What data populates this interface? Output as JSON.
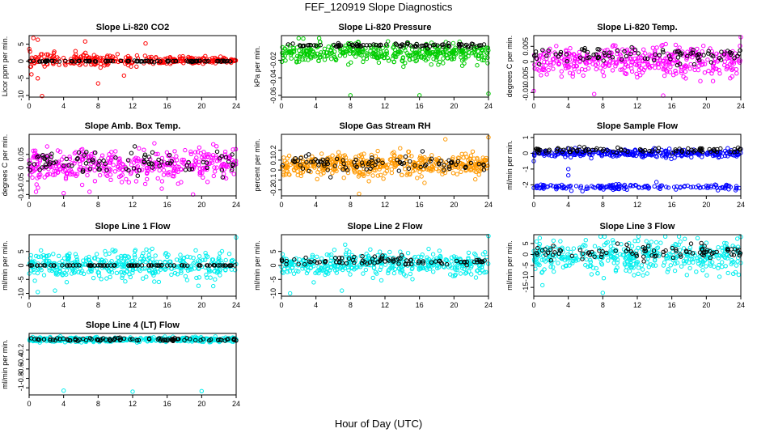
{
  "figure": {
    "title": "FEF_120919  Slope Diagnostics",
    "xlabel": "Hour of Day (UTC)"
  },
  "chart_data": [
    {
      "type": "scatter",
      "title": "Slope Li-820 CO2",
      "ylabel": "Licor ppm per min.",
      "xlim": [
        0,
        24
      ],
      "ylim": [
        -10.5,
        7.5
      ],
      "xticks": [
        0,
        4,
        8,
        12,
        16,
        20,
        24
      ],
      "yticks": [
        -10,
        -5,
        0,
        5
      ],
      "series": [
        {
          "color": "#ff0000",
          "center": 0.3,
          "spread": 2.0,
          "n": 300,
          "taper": true
        },
        {
          "color": "#000000",
          "center": 0.0,
          "spread": 0.15,
          "n": 90
        }
      ],
      "outliers": [
        [
          0.5,
          6.8
        ],
        [
          1.0,
          6.3
        ],
        [
          1.5,
          -10.2
        ],
        [
          6.5,
          5.8
        ],
        [
          8.0,
          -6.5
        ],
        [
          13.5,
          5.2
        ],
        [
          1.0,
          -5.0
        ],
        [
          11.0,
          -4.2
        ]
      ]
    },
    {
      "type": "scatter",
      "title": "Slope Li-820 Pressure",
      "ylabel": "kPa per min.",
      "xlim": [
        0,
        24
      ],
      "ylim": [
        -0.062,
        0.008
      ],
      "xticks": [
        0,
        4,
        8,
        12,
        16,
        20,
        24
      ],
      "yticks": [
        -0.06,
        -0.04,
        -0.02
      ],
      "series": [
        {
          "color": "#00cc00",
          "center": -0.012,
          "spread": 0.009,
          "n": 420
        },
        {
          "color": "#000000",
          "center": -0.003,
          "spread": 0.002,
          "n": 90
        }
      ],
      "outliers": [
        [
          8.0,
          -0.06
        ],
        [
          16.0,
          -0.06
        ],
        [
          24.0,
          -0.058
        ],
        [
          2.0,
          0.005
        ]
      ]
    },
    {
      "type": "scatter",
      "title": "Slope Li-820 Temp.",
      "ylabel": "degrees C per min.",
      "xlim": [
        0,
        24
      ],
      "ylim": [
        -0.0115,
        0.0085
      ],
      "xticks": [
        0,
        4,
        8,
        12,
        16,
        20,
        24
      ],
      "yticks": [
        -0.01,
        -0.005,
        0.0,
        0.005
      ],
      "series": [
        {
          "color": "#ff00ff",
          "center": 0.0,
          "spread": 0.004,
          "n": 400
        },
        {
          "color": "#000000",
          "center": 0.002,
          "spread": 0.002,
          "n": 90
        }
      ],
      "outliers": [
        [
          0.0,
          -0.0095
        ],
        [
          7.0,
          -0.0105
        ],
        [
          24.0,
          0.008
        ],
        [
          15.0,
          -0.011
        ]
      ]
    },
    {
      "type": "scatter",
      "title": "Slope Amb. Box Temp.",
      "ylabel": "degrees C per min.",
      "xlim": [
        0,
        24
      ],
      "ylim": [
        -0.105,
        0.125
      ],
      "xticks": [
        0,
        4,
        8,
        12,
        16,
        20,
        24
      ],
      "yticks": [
        -0.1,
        -0.05,
        0.0,
        0.05
      ],
      "series": [
        {
          "color": "#ff00ff",
          "center": 0.01,
          "spread": 0.05,
          "n": 400
        },
        {
          "color": "#000000",
          "center": 0.02,
          "spread": 0.04,
          "n": 90
        }
      ],
      "outliers": [
        [
          4.0,
          -0.095
        ],
        [
          7.0,
          -0.09
        ],
        [
          19.0,
          -0.1
        ]
      ]
    },
    {
      "type": "scatter",
      "title": "Slope Gas Stream RH",
      "ylabel": "percent per min.",
      "xlim": [
        0,
        24
      ],
      "ylim": [
        -0.26,
        0.36
      ],
      "xticks": [
        0,
        4,
        8,
        12,
        16,
        20,
        24
      ],
      "yticks": [
        -0.2,
        -0.1,
        0.0,
        0.1,
        0.2
      ],
      "series": [
        {
          "color": "#ff9900",
          "center": 0.05,
          "spread": 0.09,
          "n": 480
        },
        {
          "color": "#000000",
          "center": 0.07,
          "spread": 0.07,
          "n": 90
        }
      ],
      "outliers": [
        [
          9.0,
          -0.24
        ],
        [
          24.0,
          0.33
        ],
        [
          19.0,
          0.31
        ]
      ]
    },
    {
      "type": "scatter",
      "title": "Slope Sample Flow",
      "ylabel": "ml/min per min.",
      "xlim": [
        0,
        24
      ],
      "ylim": [
        -2.7,
        1.2
      ],
      "xticks": [
        0,
        4,
        8,
        12,
        16,
        20,
        24
      ],
      "yticks": [
        -2,
        -1,
        0,
        1
      ],
      "series": [
        {
          "color": "#0000ff",
          "center": 0.0,
          "spread": 0.2,
          "n": 300
        },
        {
          "color": "#0000ff",
          "center": -2.15,
          "spread": 0.15,
          "n": 150
        },
        {
          "color": "#000000",
          "center": 0.2,
          "spread": 0.15,
          "n": 90
        }
      ],
      "outliers": [
        [
          4.0,
          -1.4
        ],
        [
          4.0,
          -1.0
        ],
        [
          0.0,
          -0.5
        ]
      ]
    },
    {
      "type": "scatter",
      "title": "Slope Line 1 Flow",
      "ylabel": "ml/min per min.",
      "xlim": [
        0,
        24
      ],
      "ylim": [
        -11,
        11
      ],
      "xticks": [
        0,
        4,
        8,
        12,
        16,
        20,
        24
      ],
      "yticks": [
        -10,
        -5,
        0,
        5
      ],
      "series": [
        {
          "color": "#00eeee",
          "center": 0.0,
          "spread": 4.0,
          "n": 420
        },
        {
          "color": "#000000",
          "center": 0.0,
          "spread": 0.05,
          "n": 90
        }
      ],
      "outliers": [
        [
          24.0,
          10.0
        ],
        [
          1.0,
          -9.5
        ],
        [
          3.0,
          -9.0
        ]
      ]
    },
    {
      "type": "scatter",
      "title": "Slope Line 2 Flow",
      "ylabel": "ml/min per min.",
      "xlim": [
        0,
        24
      ],
      "ylim": [
        -11,
        11
      ],
      "xticks": [
        0,
        4,
        8,
        12,
        16,
        20,
        24
      ],
      "yticks": [
        -10,
        -5,
        0,
        5
      ],
      "series": [
        {
          "color": "#00eeee",
          "center": 0.5,
          "spread": 3.5,
          "n": 420
        },
        {
          "color": "#000000",
          "center": 1.5,
          "spread": 1.5,
          "n": 90
        }
      ],
      "outliers": [
        [
          24.0,
          10.5
        ],
        [
          1.0,
          -10.0
        ],
        [
          7.0,
          -9.0
        ]
      ]
    },
    {
      "type": "scatter",
      "title": "Slope Line 3 Flow",
      "ylabel": "ml/min per min.",
      "xlim": [
        0,
        24
      ],
      "ylim": [
        -19,
        9
      ],
      "xticks": [
        0,
        4,
        8,
        12,
        16,
        20,
        24
      ],
      "yticks": [
        -15,
        -10,
        -5,
        0,
        5
      ],
      "series": [
        {
          "color": "#00eeee",
          "center": -1.0,
          "spread": 6.0,
          "n": 420
        },
        {
          "color": "#000000",
          "center": 1.0,
          "spread": 2.5,
          "n": 90
        }
      ],
      "outliers": [
        [
          8.0,
          -17.5
        ],
        [
          24.0,
          8.0
        ],
        [
          1.0,
          -14.0
        ]
      ]
    },
    {
      "type": "scatter",
      "title": "Slope Line 4 (LT) Flow",
      "ylabel": "ml/min per min.",
      "xlim": [
        0,
        24
      ],
      "ylim": [
        -1.15,
        0.15
      ],
      "xticks": [
        0,
        4,
        8,
        12,
        16,
        20,
        24
      ],
      "yticks": [
        -1.0,
        -0.8,
        -0.6,
        -0.4,
        -0.2
      ],
      "series": [
        {
          "color": "#00eeee",
          "center": 0.02,
          "spread": 0.04,
          "n": 400
        },
        {
          "color": "#000000",
          "center": 0.02,
          "spread": 0.03,
          "n": 90
        }
      ],
      "outliers": [
        [
          4.0,
          -1.06
        ],
        [
          12.0,
          -1.08
        ],
        [
          20.0,
          -1.07
        ]
      ]
    }
  ]
}
